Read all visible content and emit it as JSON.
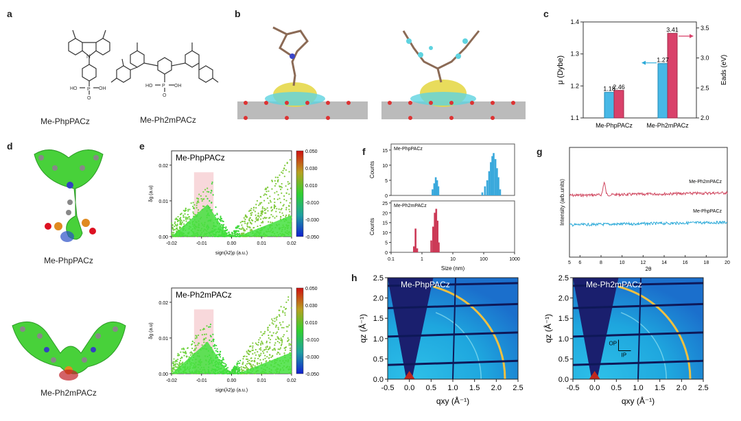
{
  "panels": {
    "a": "a",
    "b": "b",
    "c": "c",
    "d": "d",
    "e": "e",
    "f": "f",
    "g": "g",
    "h": "h"
  },
  "molecules": {
    "a_left": "Me-PhpPACz",
    "a_right": "Me-Ph2mPACz",
    "d_top": "Me-PhpPACz",
    "d_bottom": "Me-Ph2mPACz",
    "oh_left": "HO",
    "oh_right": "OH",
    "o_label": "O",
    "p_label": "P"
  },
  "chart_data": [
    {
      "id": "c",
      "type": "bar",
      "categories": [
        "Me-PhpPACz",
        "Me-Ph2mPACz"
      ],
      "series": [
        {
          "name": "μ (Dybe)",
          "values": [
            1.18,
            1.27
          ],
          "color": "#48b8e6"
        },
        {
          "name": "Eads (eV)",
          "values": [
            2.46,
            3.41
          ],
          "color": "#d9416a"
        }
      ],
      "ylabel": "μ (Dybe)",
      "ylim": [
        1.1,
        1.4
      ],
      "yticks": [
        "1.1",
        "1.2",
        "1.3",
        "1.4"
      ],
      "y2label": "Eads (eV)",
      "y2lim": [
        2.0,
        3.6
      ],
      "y2ticks": [
        "2.0",
        "2.5",
        "3.0",
        "3.5"
      ],
      "value_labels": [
        "1.18",
        "2.46",
        "1.27",
        "3.41"
      ]
    },
    {
      "id": "e_top",
      "type": "scatter",
      "title": "Me-PhpPACz",
      "xlabel": "sign(λ2)ρ (a.u.)",
      "ylabel": "δg (a.u)",
      "xlim": [
        -0.02,
        0.02
      ],
      "ylim": [
        0,
        0.024
      ],
      "xticks": [
        "-0.02",
        "-0.01",
        "0.00",
        "0.01",
        "0.02"
      ],
      "yticks": [
        "0.00",
        "0.01",
        "0.02"
      ],
      "colorbar_ticks": [
        "0.050",
        "0.030",
        "0.010",
        "-0.010",
        "-0.030",
        "-0.050"
      ]
    },
    {
      "id": "e_bottom",
      "type": "scatter",
      "title": "Me-Ph2mPACz",
      "xlabel": "sign(λ2)ρ (a.u.)",
      "ylabel": "δg (a.u)",
      "xlim": [
        -0.02,
        0.02
      ],
      "ylim": [
        0,
        0.024
      ],
      "xticks": [
        "-0.02",
        "-0.01",
        "0.00",
        "0.01",
        "0.02"
      ],
      "yticks": [
        "0.00",
        "0.01",
        "0.02"
      ],
      "colorbar_ticks": [
        "0.050",
        "0.030",
        "0.010",
        "-0.010",
        "-0.030",
        "-0.050"
      ]
    },
    {
      "id": "f",
      "type": "bar",
      "xlabel": "Size (nm)",
      "xscale": "log",
      "xticks": [
        "0.1",
        "1",
        "10",
        "100",
        "1000"
      ],
      "top": {
        "name": "Me-PhpPACz",
        "ylabel": "Counts",
        "yticks": [
          "0",
          "5",
          "10",
          "15"
        ],
        "color": "#3aa9dc",
        "x": [
          2.2,
          2.5,
          2.8,
          3.1,
          3.4,
          90,
          110,
          130,
          150,
          170,
          190,
          210,
          240,
          270,
          300,
          340
        ],
        "values": [
          2,
          4,
          6,
          5,
          3,
          1,
          3,
          5,
          8,
          11,
          13,
          14,
          12,
          9,
          6,
          2
        ]
      },
      "bottom": {
        "name": "Me-Ph2mPACz",
        "ylabel": "Counts",
        "yticks": [
          "0",
          "5",
          "10",
          "15",
          "20",
          "25"
        ],
        "color": "#cc3a57",
        "x": [
          0.55,
          0.62,
          0.7,
          2.0,
          2.3,
          2.6,
          2.9,
          3.2,
          3.5
        ],
        "values": [
          3,
          12,
          2,
          6,
          13,
          20,
          22,
          16,
          5
        ]
      }
    },
    {
      "id": "g",
      "type": "line",
      "xlabel": "2θ",
      "ylabel": "Intensity (arb.units)",
      "xlim": [
        5,
        20
      ],
      "xticks": [
        "5",
        "6",
        "8",
        "10",
        "12",
        "14",
        "16",
        "18",
        "20"
      ],
      "series": [
        {
          "name": "Me-Ph2mPACz",
          "color": "#d04860"
        },
        {
          "name": "Me-PhpPACz",
          "color": "#2aa9d8"
        }
      ]
    },
    {
      "id": "h_left",
      "type": "heatmap",
      "title": "Me-PhpPACz",
      "xlabel": "qxy (Å⁻¹)",
      "ylabel": "qz (Å⁻¹)",
      "xticks": [
        "-0.5",
        "0.0",
        "0.5",
        "1.0",
        "1.5",
        "2.0",
        "2.5"
      ],
      "yticks": [
        "0.0",
        "0.5",
        "1.0",
        "1.5",
        "2.0",
        "2.5"
      ]
    },
    {
      "id": "h_right",
      "type": "heatmap",
      "title": "Me-Ph2mPACz",
      "xlabel": "qxy (Å⁻¹)",
      "ylabel": "qz (Å⁻¹)",
      "xticks": [
        "-0.5",
        "0.0",
        "0.5",
        "1.0",
        "1.5",
        "2.0",
        "2.5"
      ],
      "yticks": [
        "0.0",
        "0.5",
        "1.0",
        "1.5",
        "2.0",
        "2.5"
      ],
      "inset_labels": [
        "OP",
        "IP"
      ]
    }
  ]
}
